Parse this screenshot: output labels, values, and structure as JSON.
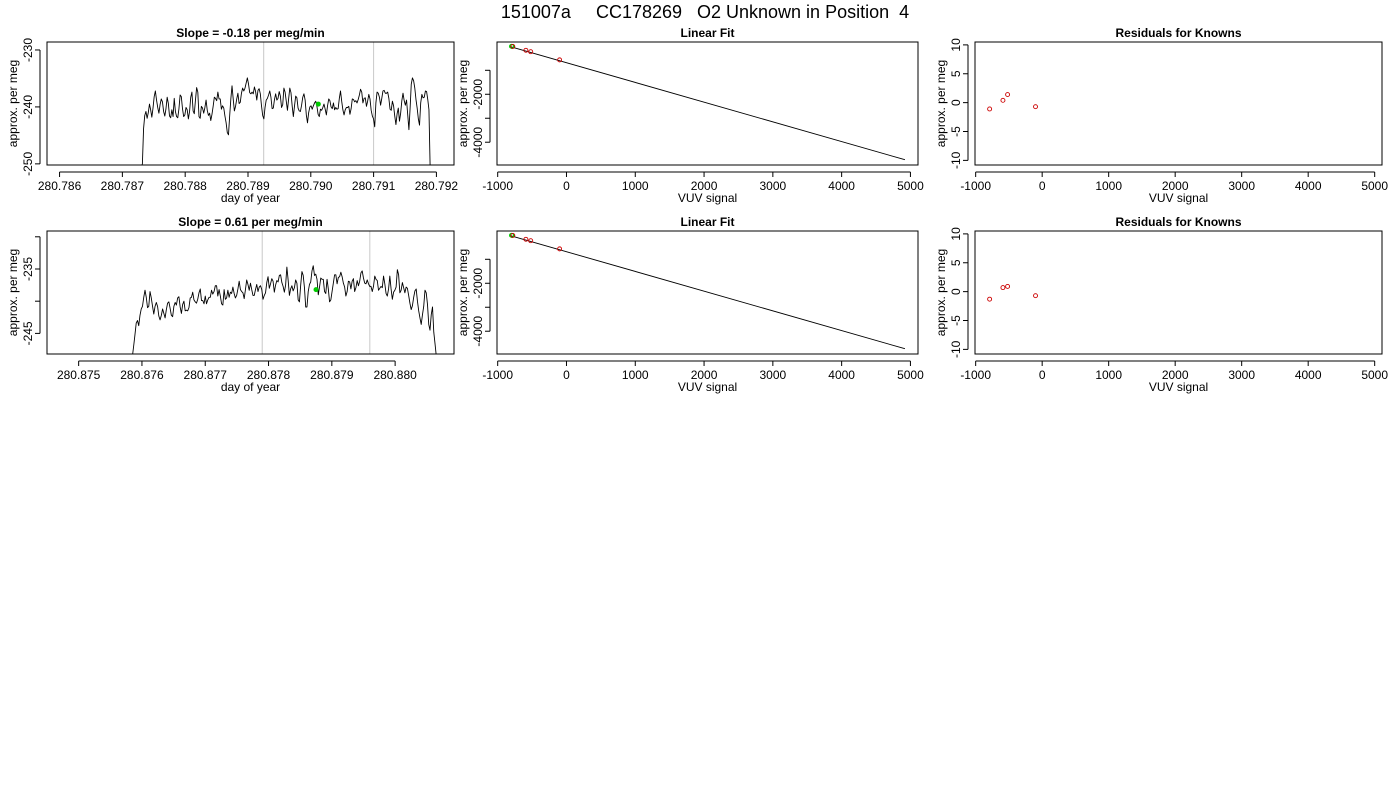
{
  "page_title": "151007a     CC178269   O2 Unknown in Position  4",
  "colors": {
    "line": "#000000",
    "marker_green": "#00cc00",
    "marker_red": "#cc0000",
    "vline": "#c8c8c8",
    "axis": "#000000"
  },
  "chart_data": [
    {
      "id": "ts1",
      "type": "line",
      "title": "Slope =  -0.18  per meg/min",
      "xlabel": "day of year",
      "ylabel": "approx. per meg",
      "xlim": [
        280.7858,
        280.79228
      ],
      "ylim": [
        -250.2,
        -228.6
      ],
      "xticks": [
        280.786,
        280.787,
        280.788,
        280.789,
        280.79,
        280.791,
        280.792
      ],
      "xtick_labels": [
        "280.786",
        "280.787",
        "280.788",
        "280.789",
        "280.790",
        "280.791",
        "280.792"
      ],
      "yticks": [
        -250,
        -240,
        -230
      ],
      "ytick_labels": [
        "-250",
        "-240",
        "-230"
      ],
      "vlines": [
        280.78925,
        280.791
      ],
      "x_start": 280.7873,
      "x_end": 280.7919,
      "values": [
        -250.5,
        -250,
        -243.8,
        -241.5,
        -240.8,
        -242,
        -241,
        -239.5,
        -240.5,
        -241.8,
        -240.2,
        -238.2,
        -237.2,
        -238.8,
        -240.1,
        -241.1,
        -239.6,
        -238.6,
        -239.1,
        -240.8,
        -241.6,
        -240.3,
        -238.3,
        -239.4,
        -241.6,
        -241.9,
        -240.5,
        -241.7,
        -238.5,
        -240.8,
        -241.7,
        -241.9,
        -240.3,
        -237.9,
        -238.2,
        -240.3,
        -241.7,
        -241.4,
        -240.1,
        -240.5,
        -242.1,
        -240.8,
        -238.3,
        -237.4,
        -240.7,
        -241.2,
        -238.8,
        -236.6,
        -237.4,
        -241.7,
        -242,
        -239.9,
        -240.2,
        -241.1,
        -240.1,
        -238.8,
        -240.6,
        -241.5,
        -241.1,
        -242.4,
        -241.3,
        -239.9,
        -238.3,
        -238.5,
        -238.9,
        -237.4,
        -238.6,
        -238.6,
        -240.4,
        -239.8,
        -240.2,
        -241.6,
        -242.8,
        -244.5,
        -244.9,
        -241.6,
        -238.6,
        -236.3,
        -238.6,
        -240.7,
        -239.9,
        -238.6,
        -237.6,
        -239.4,
        -239.2,
        -237.6,
        -236.7,
        -237.2,
        -236.7,
        -235.8,
        -234.9,
        -236,
        -237.5,
        -237.7,
        -237.4,
        -237.7,
        -236.5,
        -237.3,
        -238.8,
        -237.1,
        -236.8,
        -237.7,
        -239.8,
        -241.5,
        -242.1,
        -240.1,
        -238.8,
        -238.5,
        -237.9,
        -237.2,
        -238.3,
        -240.3,
        -240.2,
        -238.7,
        -237.7,
        -238.8,
        -238.5,
        -237.3,
        -238.1,
        -240.1,
        -239.6,
        -236.7,
        -237.4,
        -239,
        -240.6,
        -238.6,
        -236.7,
        -237.5,
        -239.8,
        -241.7,
        -239.8,
        -238.1,
        -238.4,
        -240.2,
        -240.7,
        -240.8,
        -239.7,
        -238.3,
        -237.7,
        -238.8,
        -241.4,
        -242.8,
        -241,
        -240,
        -239.8,
        -240.4,
        -239.8,
        -239.3,
        -239,
        -239.9,
        -241.3,
        -241.7,
        -240.4,
        -240.6,
        -240.1,
        -239.5,
        -240.4,
        -241.4,
        -239.8,
        -238.6,
        -238.9,
        -240,
        -240.3,
        -239.3,
        -240.5,
        -240.1,
        -240.4,
        -240.3,
        -238.5,
        -237.2,
        -239,
        -240.5,
        -241.4,
        -240.5,
        -240.1,
        -240.1,
        -239.9,
        -241.3,
        -240.3,
        -238.6,
        -238.7,
        -239.1,
        -238.9,
        -239.3,
        -238.7,
        -237.9,
        -236.9,
        -237.4,
        -239.3,
        -238.5,
        -238.4,
        -239.9,
        -239,
        -237.8,
        -238.6,
        -240.6,
        -241.6,
        -242.1,
        -243.5,
        -239.3,
        -237.4,
        -237.6,
        -238.3,
        -239.7,
        -238.5,
        -237.2,
        -237.1,
        -237.6,
        -237.6,
        -237.4,
        -238.5,
        -240.4,
        -240.6,
        -239,
        -239.8,
        -241.6,
        -243.1,
        -241.2,
        -240.2,
        -242.5,
        -241.1,
        -238.9,
        -237.6,
        -238.9,
        -239.7,
        -238.8,
        -241.4,
        -244,
        -240.3,
        -236,
        -234.9,
        -235.4,
        -236.7,
        -238.7,
        -240.2,
        -242.1,
        -243.2,
        -239.3,
        -237.8,
        -238.4,
        -238.3,
        -237.2,
        -237.3,
        -238.7,
        -240.5,
        -250.5
      ],
      "markers": [
        {
          "x": 280.79012,
          "y": -239.5,
          "color": "marker_green"
        }
      ]
    },
    {
      "id": "fit1",
      "type": "scatter",
      "title": "Linear Fit",
      "xlabel": "VUV signal",
      "ylabel": "approx. per meg",
      "xlim": [
        -1010,
        5110
      ],
      "ylim": [
        -4950,
        180
      ],
      "xticks": [
        -1000,
        0,
        1000,
        2000,
        3000,
        4000,
        5000
      ],
      "xtick_labels": [
        "-1000",
        "0",
        "1000",
        "2000",
        "3000",
        "4000",
        "5000"
      ],
      "yticks": [
        -4000,
        -3000,
        -2000,
        -1000
      ],
      "ytick_labels": [
        "-4000",
        "",
        "-2000",
        ""
      ],
      "fit_line": [
        [
          -820,
          -10
        ],
        [
          4920,
          -4730
        ]
      ],
      "points": [
        {
          "x": -800,
          "y": 0,
          "color": "marker_green"
        },
        {
          "x": -790,
          "y": -10,
          "color": "marker_green"
        },
        {
          "x": -780,
          "y": -5,
          "color": "marker_red"
        },
        {
          "x": -590,
          "y": -165,
          "color": "marker_red"
        },
        {
          "x": -520,
          "y": -225,
          "color": "marker_red"
        },
        {
          "x": -100,
          "y": -565,
          "color": "marker_red"
        }
      ]
    },
    {
      "id": "res1",
      "type": "scatter",
      "title": "Residuals for Knowns",
      "xlabel": "VUV signal",
      "ylabel": "approx. per meg",
      "xlim": [
        -1010,
        5110
      ],
      "ylim": [
        -10.8,
        10.5
      ],
      "xticks": [
        -1000,
        0,
        1000,
        2000,
        3000,
        4000,
        5000
      ],
      "xtick_labels": [
        "-1000",
        "0",
        "1000",
        "2000",
        "3000",
        "4000",
        "5000"
      ],
      "yticks": [
        -10,
        -5,
        0,
        5,
        10
      ],
      "ytick_labels": [
        "-10",
        "-5",
        "0",
        "5",
        "10"
      ],
      "points": [
        {
          "x": -790,
          "y": -1.1,
          "color": "marker_red"
        },
        {
          "x": -590,
          "y": 0.4,
          "color": "marker_red"
        },
        {
          "x": -520,
          "y": 1.4,
          "color": "marker_red"
        },
        {
          "x": -100,
          "y": -0.7,
          "color": "marker_red"
        }
      ]
    },
    {
      "id": "ts2",
      "type": "line",
      "title": "Slope =  0.61  per meg/min",
      "xlabel": "day of year",
      "ylabel": "approx. per meg",
      "xlim": [
        280.8745,
        280.88093
      ],
      "ylim": [
        -248.2,
        -229.1
      ],
      "xticks": [
        280.875,
        280.876,
        280.877,
        280.878,
        280.879,
        280.88
      ],
      "xtick_labels": [
        "280.875",
        "280.876",
        "280.877",
        "280.878",
        "280.879",
        "280.880"
      ],
      "yticks": [
        -245,
        -240,
        -235,
        -230
      ],
      "ytick_labels": [
        "-245",
        "",
        "-235",
        ""
      ],
      "vlines": [
        280.8779,
        280.8796
      ],
      "x_start": 280.87585,
      "x_end": 280.88065,
      "values": [
        -248.5,
        -246.9,
        -245.2,
        -243.4,
        -243,
        -243.8,
        -242.2,
        -241.2,
        -240.8,
        -239.4,
        -238.3,
        -239.4,
        -241,
        -240.8,
        -238.5,
        -239.5,
        -240.8,
        -242,
        -240.8,
        -240.2,
        -240.8,
        -242.3,
        -242.9,
        -242.2,
        -241.2,
        -241.9,
        -242.6,
        -241.3,
        -240.3,
        -240.1,
        -241.1,
        -242.2,
        -242.4,
        -240.8,
        -240.2,
        -240.6,
        -239.5,
        -239.3,
        -240.9,
        -241.9,
        -240.5,
        -240,
        -241.5,
        -241.4,
        -241.5,
        -241,
        -239.5,
        -239.4,
        -238.6,
        -239.8,
        -240.1,
        -240.3,
        -239.7,
        -238.7,
        -238.1,
        -239.9,
        -239.9,
        -240.4,
        -239.2,
        -240.4,
        -239.8,
        -239.4,
        -239.4,
        -238.3,
        -238.9,
        -238.5,
        -237.6,
        -237.6,
        -239.2,
        -238.2,
        -239.2,
        -240.4,
        -240.6,
        -238.2,
        -239.7,
        -239.5,
        -238.3,
        -239.4,
        -238.6,
        -238.8,
        -237.8,
        -238.8,
        -239.5,
        -239.1,
        -238.1,
        -236.9,
        -238.2,
        -238.5,
        -238.7,
        -239.6,
        -238.2,
        -236.7,
        -237.4,
        -238.3,
        -237.2,
        -238.2,
        -239.1,
        -239.1,
        -238.2,
        -237.4,
        -238.5,
        -237.8,
        -237.6,
        -238.2,
        -239.7,
        -239.1,
        -238.7,
        -237.1,
        -236.2,
        -238,
        -237.3,
        -236.5,
        -236.9,
        -238.6,
        -237.5,
        -236.8,
        -237,
        -236,
        -235.9,
        -237.1,
        -237.7,
        -238.6,
        -237.5,
        -234.7,
        -236.7,
        -239.1,
        -238.1,
        -237.6,
        -238.4,
        -237.9,
        -236.7,
        -237.2,
        -239.8,
        -240.1,
        -237.5,
        -235.4,
        -236,
        -237.9,
        -240.9,
        -240.9,
        -238.5,
        -237.4,
        -237,
        -235.3,
        -234.5,
        -236,
        -235.8,
        -236.6,
        -239,
        -237.8,
        -236.4,
        -236.6,
        -236.6,
        -238.5,
        -238.8,
        -236.6,
        -238.1,
        -240.1,
        -239.8,
        -238.5,
        -237.2,
        -235.9,
        -235.9,
        -237.3,
        -236.3,
        -236.2,
        -235.5,
        -236.2,
        -237.2,
        -237.8,
        -239.2,
        -238.5,
        -236.9,
        -237,
        -238.1,
        -236.9,
        -236.5,
        -238.5,
        -237.9,
        -236.8,
        -237.6,
        -236.9,
        -235.6,
        -235.3,
        -236.4,
        -237.2,
        -237.3,
        -236.7,
        -237.3,
        -237.7,
        -237.7,
        -238.5,
        -237.7,
        -236.1,
        -236.6,
        -236.8,
        -238.3,
        -238,
        -237.7,
        -237.9,
        -236.1,
        -237.3,
        -238.8,
        -239.2,
        -238.1,
        -236.1,
        -238.1,
        -239.7,
        -238.6,
        -238.3,
        -237.8,
        -235.1,
        -235.9,
        -238.7,
        -238.3,
        -237.1,
        -237.9,
        -238.7,
        -237.8,
        -238,
        -239.1,
        -240.3,
        -241.3,
        -240.7,
        -239.4,
        -238.4,
        -238.1,
        -240,
        -241.5,
        -242.6,
        -243.6,
        -242.1,
        -240.8,
        -238.3,
        -238.7,
        -240.5,
        -243.6,
        -244.5,
        -242.1,
        -240.9,
        -244.8,
        -246.6,
        -248.5
      ],
      "markers": [
        {
          "x": 280.87875,
          "y": -238.2,
          "color": "marker_green"
        }
      ]
    },
    {
      "id": "fit2",
      "type": "scatter",
      "title": "Linear Fit",
      "xlabel": "VUV signal",
      "ylabel": "approx. per meg",
      "xlim": [
        -1010,
        5110
      ],
      "ylim": [
        -4950,
        180
      ],
      "xticks": [
        -1000,
        0,
        1000,
        2000,
        3000,
        4000,
        5000
      ],
      "xtick_labels": [
        "-1000",
        "0",
        "1000",
        "2000",
        "3000",
        "4000",
        "5000"
      ],
      "yticks": [
        -4000,
        -3000,
        -2000,
        -1000
      ],
      "ytick_labels": [
        "-4000",
        "",
        "-2000",
        ""
      ],
      "fit_line": [
        [
          -820,
          -10
        ],
        [
          4920,
          -4730
        ]
      ],
      "points": [
        {
          "x": -800,
          "y": 0,
          "color": "marker_green"
        },
        {
          "x": -790,
          "y": -10,
          "color": "marker_green"
        },
        {
          "x": -780,
          "y": -5,
          "color": "marker_red"
        },
        {
          "x": -590,
          "y": -165,
          "color": "marker_red"
        },
        {
          "x": -520,
          "y": -225,
          "color": "marker_red"
        },
        {
          "x": -100,
          "y": -565,
          "color": "marker_red"
        }
      ]
    },
    {
      "id": "res2",
      "type": "scatter",
      "title": "Residuals for Knowns",
      "xlabel": "VUV signal",
      "ylabel": "approx. per meg",
      "xlim": [
        -1010,
        5110
      ],
      "ylim": [
        -10.8,
        10.5
      ],
      "xticks": [
        -1000,
        0,
        1000,
        2000,
        3000,
        4000,
        5000
      ],
      "xtick_labels": [
        "-1000",
        "0",
        "1000",
        "2000",
        "3000",
        "4000",
        "5000"
      ],
      "yticks": [
        -10,
        -5,
        0,
        5,
        10
      ],
      "ytick_labels": [
        "-10",
        "-5",
        "0",
        "5",
        "10"
      ],
      "points": [
        {
          "x": -790,
          "y": -1.3,
          "color": "marker_red"
        },
        {
          "x": -590,
          "y": 0.7,
          "color": "marker_red"
        },
        {
          "x": -520,
          "y": 0.9,
          "color": "marker_red"
        },
        {
          "x": -100,
          "y": -0.7,
          "color": "marker_red"
        }
      ]
    }
  ]
}
